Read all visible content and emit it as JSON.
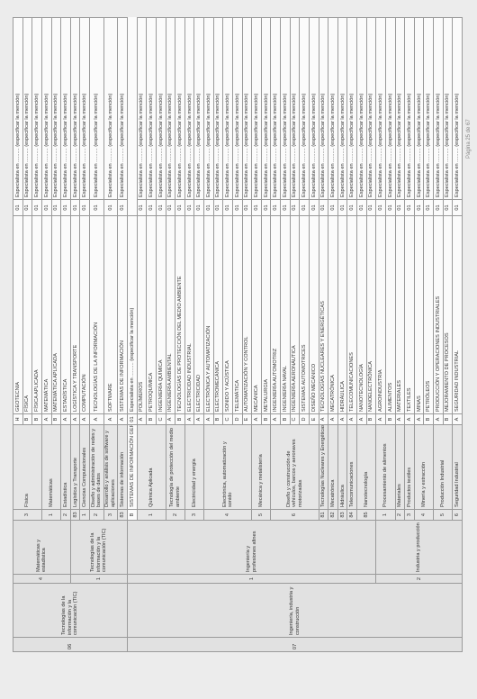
{
  "rows": [
    {
      "c3": "H",
      "name": "GEOTECNIA",
      "num": "01",
      "esp": "Especialista en .......... (especificar la mención)"
    },
    {
      "c3": "B",
      "name": "FÍSICA",
      "num": "01",
      "esp": "Especialista en .......... (especificar la mención)"
    },
    {
      "c3": "B",
      "name": "FÍSICA APLICADA",
      "num": "01",
      "esp": "Especialista en .......... (especificar la mención)"
    },
    {
      "c3": "A",
      "name": "MATEMÁTICA",
      "num": "01",
      "esp": "Especialista en .......... (especificar la mención)"
    },
    {
      "c3": "B",
      "name": "MATEMÁTICA APLICADA",
      "num": "01",
      "esp": "Especialista en .......... (especificar la mención)"
    },
    {
      "c3": "A",
      "name": "ESTADÍSTICA",
      "num": "01",
      "esp": "Especialista en .......... (especificar la mención)"
    },
    {
      "c3": "A",
      "name": "LOGÍSTICA Y TRANSPORTE",
      "num": "01",
      "esp": "Especialista en .......... (especificar la mención)"
    },
    {
      "c3": "A",
      "name": "COMPUTACIÓN",
      "num": "01",
      "esp": "Especialista en .......... (especificar la mención)"
    },
    {
      "c3": "A",
      "name": "TECNOLOGÍAS DE LA INFORMACIÓN",
      "num": "01",
      "esp": "Especialista en .......... (especificar la mención)"
    },
    {
      "c3": "A",
      "name": "SOFTWARE",
      "num": "01",
      "esp": "Especialista en .......... (especificar la mención)"
    },
    {
      "c3": "A",
      "name": "SISTEMAS DE INFORMACIÓN",
      "num": "01",
      "esp": "Especialista en .......... (especificar la mención)"
    },
    {
      "c3": "B",
      "name": "SISTEMAS DE INFORMACIÓN GERENCIAL",
      "num": "01",
      "esp": "Especialista en .......... (especificar la mención)"
    },
    {
      "c3": "A",
      "name": "POLÍMEROS",
      "num": "01",
      "esp": "Especialista en .......... (especificar la mención)"
    },
    {
      "c3": "B",
      "name": "PETROQUÍMICA",
      "num": "01",
      "esp": "Especialista en .......... (especificar la mención)"
    },
    {
      "c3": "C",
      "name": "INGENIERÍA QUÍMICA",
      "num": "01",
      "esp": "Especialista en .......... (especificar la mención)"
    },
    {
      "c3": "A",
      "name": "INGENIERÍA AMBIENTAL",
      "num": "01",
      "esp": "Especialista en .......... (especificar la mención)"
    },
    {
      "c3": "B",
      "name": "TECNOLOGÍAS DE PROTECCIÓN DEL MEDIO AMBIENTE",
      "num": "01",
      "esp": "Especialista en .......... (especificar la mención)"
    },
    {
      "c3": "A",
      "name": "ELECTRICIDAD INDUSTRIAL",
      "num": "01",
      "esp": "Especialista en .......... (especificar la mención)"
    },
    {
      "c3": "A",
      "name": "ELECTRICIDAD",
      "num": "01",
      "esp": "Especialista en .......... (especificar la mención)"
    },
    {
      "c3": "A",
      "name": "ELECTRÓNICA Y AUTOMATIZACIÓN",
      "num": "01",
      "esp": "Especialista en .......... (especificar la mención)"
    },
    {
      "c3": "B",
      "name": "ELECTROMECÁNICA",
      "num": "01",
      "esp": "Especialista en .......... (especificar la mención)"
    },
    {
      "c3": "C",
      "name": "SONIDO Y ACÚSTICA",
      "num": "01",
      "esp": "Especialista en .......... (especificar la mención)"
    },
    {
      "c3": "D",
      "name": "TELEMÁTICA",
      "num": "01",
      "esp": "Especialista en .......... (especificar la mención)"
    },
    {
      "c3": "E",
      "name": "AUTOMATIZACIÓN Y CONTROL",
      "num": "01",
      "esp": "Especialista en .......... (especificar la mención)"
    },
    {
      "c3": "A",
      "name": "MECÁNICA",
      "num": "01",
      "esp": "Especialista en .......... (especificar la mención)"
    },
    {
      "c3": "B",
      "name": "METALURGIA",
      "num": "01",
      "esp": "Especialista en .......... (especificar la mención)"
    },
    {
      "c3": "A",
      "name": "INGENIERÍA AUTOMOTRIZ",
      "num": "01",
      "esp": "Especialista en .......... (especificar la mención)"
    },
    {
      "c3": "B",
      "name": "INGENIERÍA NAVAL",
      "num": "01",
      "esp": "Especialista en .......... (especificar la mención)"
    },
    {
      "c3": "C",
      "name": "INGENIERÍA AERONÁUTICA",
      "num": "01",
      "esp": "Especialista en .......... (especificar la mención)"
    },
    {
      "c3": "D",
      "name": "SISTEMAS AUTOMOTRICES",
      "num": "01",
      "esp": "Especialista en .......... (especificar la mención)"
    },
    {
      "c3": "E",
      "name": "DISEÑO MECÁNICO",
      "num": "01",
      "esp": "Especialista en .......... (especificar la mención)"
    },
    {
      "c3": "A",
      "name": "TECNOLOGÍAS NUCLEARES Y ENERGÉTICAS",
      "num": "01",
      "esp": "Especialista en .......... (especificar la mención)"
    },
    {
      "c3": "A",
      "name": "MECATRÓNICA",
      "num": "01",
      "esp": "Especialista en .......... (especificar la mención)"
    },
    {
      "c3": "A",
      "name": "HIDRÁULICA",
      "num": "01",
      "esp": "Especialista en .......... (especificar la mención)"
    },
    {
      "c3": "A",
      "name": "TELECOMUNICACIONES",
      "num": "01",
      "esp": "Especialista en .......... (especificar la mención)"
    },
    {
      "c3": "A",
      "name": "NANOTECNOLOGÍA",
      "num": "01",
      "esp": "Especialista en .......... (especificar la mención)"
    },
    {
      "c3": "B",
      "name": "NANOELECTRÓNICA",
      "num": "01",
      "esp": "Especialista en .......... (especificar la mención)"
    },
    {
      "c3": "A",
      "name": "AGROINDUSTRIA",
      "num": "01",
      "esp": "Especialista en .......... (especificar la mención)"
    },
    {
      "c3": "B",
      "name": "ALIMENTOS",
      "num": "01",
      "esp": "Especialista en .......... (especificar la mención)"
    },
    {
      "c3": "A",
      "name": "MATERIALES",
      "num": "01",
      "esp": "Especialista en .......... (especificar la mención)"
    },
    {
      "c3": "A",
      "name": "TEXTILES",
      "num": "01",
      "esp": "Especialista en .......... (especificar la mención)"
    },
    {
      "c3": "A",
      "name": "MINAS",
      "num": "01",
      "esp": "Especialista en .......... (especificar la mención)"
    },
    {
      "c3": "B",
      "name": "PETRÓLEOS",
      "num": "01",
      "esp": "Especialista en .......... (especificar la mención)"
    },
    {
      "c3": "A",
      "name": "PRODUCCIÓN Y OPERACIONES INDUSTRIALES",
      "num": "01",
      "esp": "Especialista en .......... (especificar la mención)"
    },
    {
      "c3": "B",
      "name": "MEJORAMIENTO DE PROCESOS",
      "num": "01",
      "esp": "Especialista en .......... (especificar la mención)"
    },
    {
      "c3": "A",
      "name": "SEGURIDAD INDUSTRIAL",
      "num": "01",
      "esp": "Especialista en .......... (especificar la mención)"
    }
  ],
  "groups": {
    "g06": {
      "code": "06",
      "title": "Tecnologías de la información y la comunicación (TIC)"
    },
    "g07": {
      "code": "07",
      "title": "Ingeniería, industria y construcción"
    },
    "g06_1": {
      "code": "1",
      "title": "Tecnologías de la información y la comunicación (TIC)"
    },
    "g07_1": {
      "code": "1",
      "title": "Ingeniería y profesiones afines"
    },
    "g07_2": {
      "code": "2",
      "title": "Industria y producción"
    },
    "g4": {
      "code": "4",
      "title": "Matemáticas y estadística"
    },
    "s3_fisica": {
      "code": "3",
      "title": "Física"
    },
    "s1_mat": {
      "code": "1",
      "title": "Matemáticas"
    },
    "s2_est": {
      "code": "2",
      "title": "Estadística"
    },
    "s83_log": {
      "code": "83",
      "title": "Logística y Transporte"
    },
    "s1_comp": {
      "code": "1",
      "title": "Ciencias Computacionales"
    },
    "s2_redes": {
      "code": "2",
      "title": "Diseño y administración de redes y bases de datos"
    },
    "s3_soft": {
      "code": "3",
      "title": "Desarrollo y análisis de software y aplicaciones"
    },
    "s83_si": {
      "code": "83",
      "title": "Sistemas de información"
    },
    "s1_quim": {
      "code": "1",
      "title": "Química Aplicada"
    },
    "s2_tec": {
      "code": "2",
      "title": "Tecnología de protección del medio ambiente"
    },
    "s3_elec": {
      "code": "3",
      "title": "Electricidad y energía"
    },
    "s4_elecauto": {
      "code": "4",
      "title": "Electrónica, automatización y sonido"
    },
    "s5_mec": {
      "code": "5",
      "title": "Mecánica y metalistería"
    },
    "s6_dis": {
      "code": "6",
      "title": "Diseño y construcción de vehículos, barcos y aeronaves motorizadas"
    },
    "s81_tnuc": {
      "code": "81",
      "title": "Tecnologías Nucleares y Energéticas"
    },
    "s82_meca": {
      "code": "82",
      "title": "Mecatrónica"
    },
    "s83_hid": {
      "code": "83",
      "title": "Hidráulica"
    },
    "s84_tel": {
      "code": "84",
      "title": "Telecomunicaciones"
    },
    "s85_nano": {
      "code": "85",
      "title": "Nanotecnología"
    },
    "s1_proc": {
      "code": "1",
      "title": "Procesamiento de alimentos"
    },
    "s2_mat": {
      "code": "2",
      "title": "Materiales"
    },
    "s3_text": {
      "code": "3",
      "title": "Productos textiles"
    },
    "s4_min": {
      "code": "4",
      "title": "Minería y extracción"
    },
    "s5_prod": {
      "code": "5",
      "title": "Producción Industrial"
    },
    "s6_seg": {
      "code": "6",
      "title": "Seguridad Industrial"
    }
  },
  "footer": "Página 25 de 67"
}
